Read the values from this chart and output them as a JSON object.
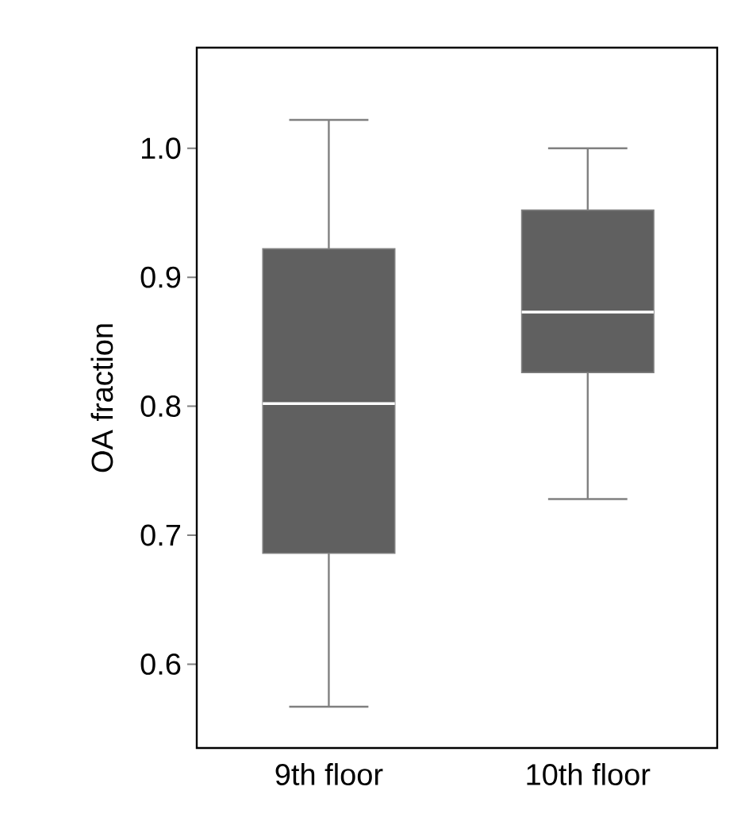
{
  "chart_data": {
    "type": "box",
    "ylabel": "OA fraction",
    "categories": [
      "9th floor",
      "10th floor"
    ],
    "boxes": [
      {
        "low": 0.567,
        "q1": 0.686,
        "median": 0.802,
        "q3": 0.922,
        "high": 1.022
      },
      {
        "low": 0.728,
        "q1": 0.826,
        "median": 0.873,
        "q3": 0.952,
        "high": 1.0
      }
    ],
    "color": "#606060",
    "ylim": [
      0.535,
      1.078
    ],
    "yticks": [
      {
        "value": 0.6,
        "label": "0.6"
      },
      {
        "value": 0.7,
        "label": "0.7"
      },
      {
        "value": 0.8,
        "label": "0.8"
      },
      {
        "value": 0.9,
        "label": "0.9"
      },
      {
        "value": 1.0,
        "label": "1.0"
      }
    ],
    "grid": false
  }
}
